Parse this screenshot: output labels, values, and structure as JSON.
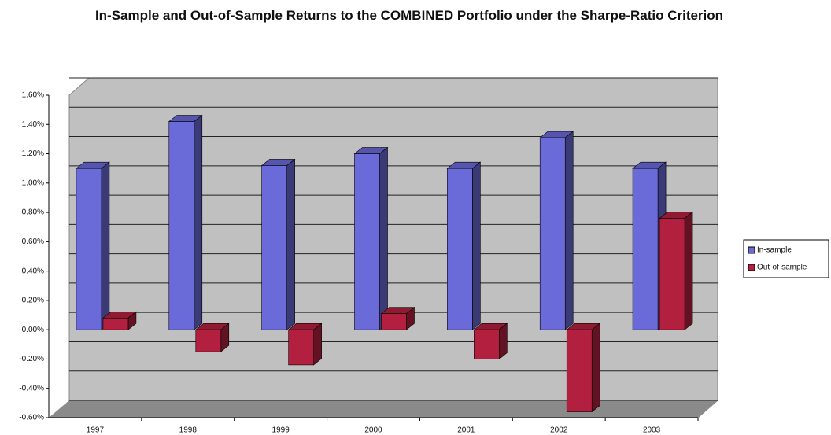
{
  "chart_data": {
    "type": "bar3d",
    "title": "In-Sample and Out-of-Sample Returns to the COMBINED Portfolio under the Sharpe-Ratio Criterion",
    "categories": [
      "1997",
      "1998",
      "1999",
      "2000",
      "2001",
      "2002",
      "2003"
    ],
    "series": [
      {
        "name": "In-sample",
        "color": "#6a6ad8",
        "values": [
          1.1,
          1.42,
          1.12,
          1.2,
          1.1,
          1.31,
          1.1
        ]
      },
      {
        "name": "Out-of-sample",
        "color": "#b3203f",
        "values": [
          0.08,
          -0.15,
          -0.24,
          0.11,
          -0.2,
          -0.56,
          0.76
        ]
      }
    ],
    "ylim": [
      -0.6,
      1.6
    ],
    "yticks": [
      {
        "value": -0.6,
        "label": "-0.60%"
      },
      {
        "value": -0.4,
        "label": "-0.40%"
      },
      {
        "value": -0.2,
        "label": "-0.20%"
      },
      {
        "value": 0,
        "label": "0.00%"
      },
      {
        "value": 0.2,
        "label": "0.20%"
      },
      {
        "value": 0.4,
        "label": "0.40%"
      },
      {
        "value": 0.6,
        "label": "0.60%"
      },
      {
        "value": 0.8,
        "label": "0.80%"
      },
      {
        "value": 1.0,
        "label": "1.00%"
      },
      {
        "value": 1.2,
        "label": "1.20%"
      },
      {
        "value": 1.4,
        "label": "1.40%"
      },
      {
        "value": 1.6,
        "label": "1.60%"
      }
    ],
    "grid": true,
    "legend": "right"
  }
}
